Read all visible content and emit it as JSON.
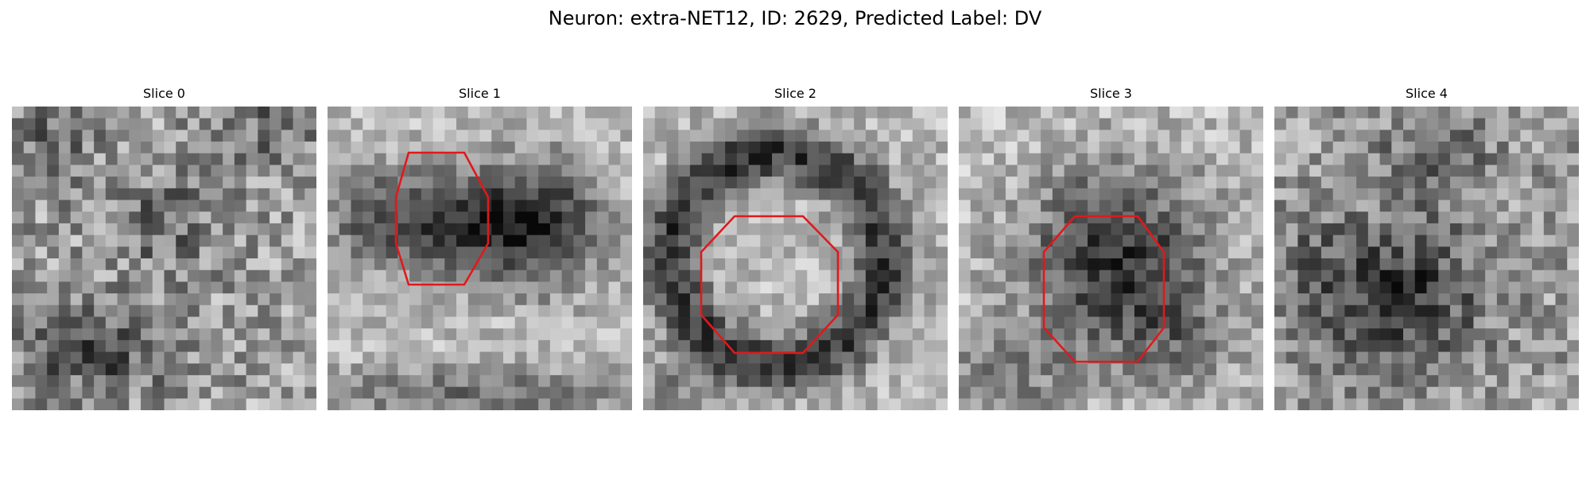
{
  "figure": {
    "title": "Neuron: extra-NET12, ID: 2629, Predicted Label: DV",
    "neuron": "extra-NET12",
    "id": 2629,
    "predicted_label": "DV"
  },
  "panels": [
    {
      "title": "Slice 0",
      "roi_marker": false
    },
    {
      "title": "Slice 1",
      "roi_marker": true
    },
    {
      "title": "Slice 2",
      "roi_marker": true
    },
    {
      "title": "Slice 3",
      "roi_marker": true
    },
    {
      "title": "Slice 4",
      "roi_marker": false
    }
  ],
  "colors": {
    "roi": "#e0191b",
    "background": "#ffffff"
  },
  "colormap": "grayscale"
}
